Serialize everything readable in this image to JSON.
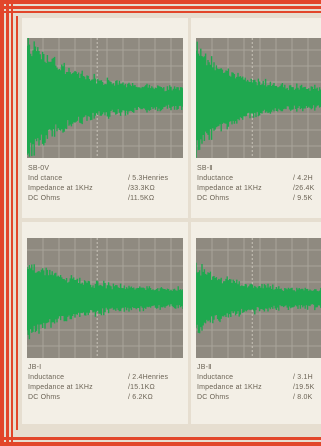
{
  "colors": {
    "accent_red": "#e2462a",
    "trace_green": "#1fa84f",
    "screen_gray": "#8f8a80",
    "caption_text": "#6b6355"
  },
  "panels": [
    {
      "name": "SB-0V",
      "rows": [
        {
          "label": "Ind ctance",
          "value": "/ 5.3Henries"
        },
        {
          "label": "Impedance at 1KHz",
          "value": "/33.3KΩ"
        },
        {
          "label": "DC Ohms",
          "value": "/11.5KΩ"
        }
      ]
    },
    {
      "name": "SB-Ⅱ",
      "rows": [
        {
          "label": "Inductance",
          "value": "/ 4.2H"
        },
        {
          "label": "Impedance at 1KHz",
          "value": "/26.4K"
        },
        {
          "label": "DC Ohms",
          "value": "/ 9.5K"
        }
      ]
    },
    {
      "name": "JB-Ⅰ",
      "rows": [
        {
          "label": "Inductance",
          "value": "/ 2.4Henries"
        },
        {
          "label": "Impedance at 1KHz",
          "value": "/15.1KΩ"
        },
        {
          "label": "DC Ohms",
          "value": "/ 6.2KΩ"
        }
      ]
    },
    {
      "name": "JB-Ⅱ",
      "rows": [
        {
          "label": "Inductance",
          "value": "/ 3.1H"
        },
        {
          "label": "Impedance at 1KHz",
          "value": "/19.5K"
        },
        {
          "label": "DC Ohms",
          "value": "/ 8.0K"
        }
      ]
    }
  ]
}
